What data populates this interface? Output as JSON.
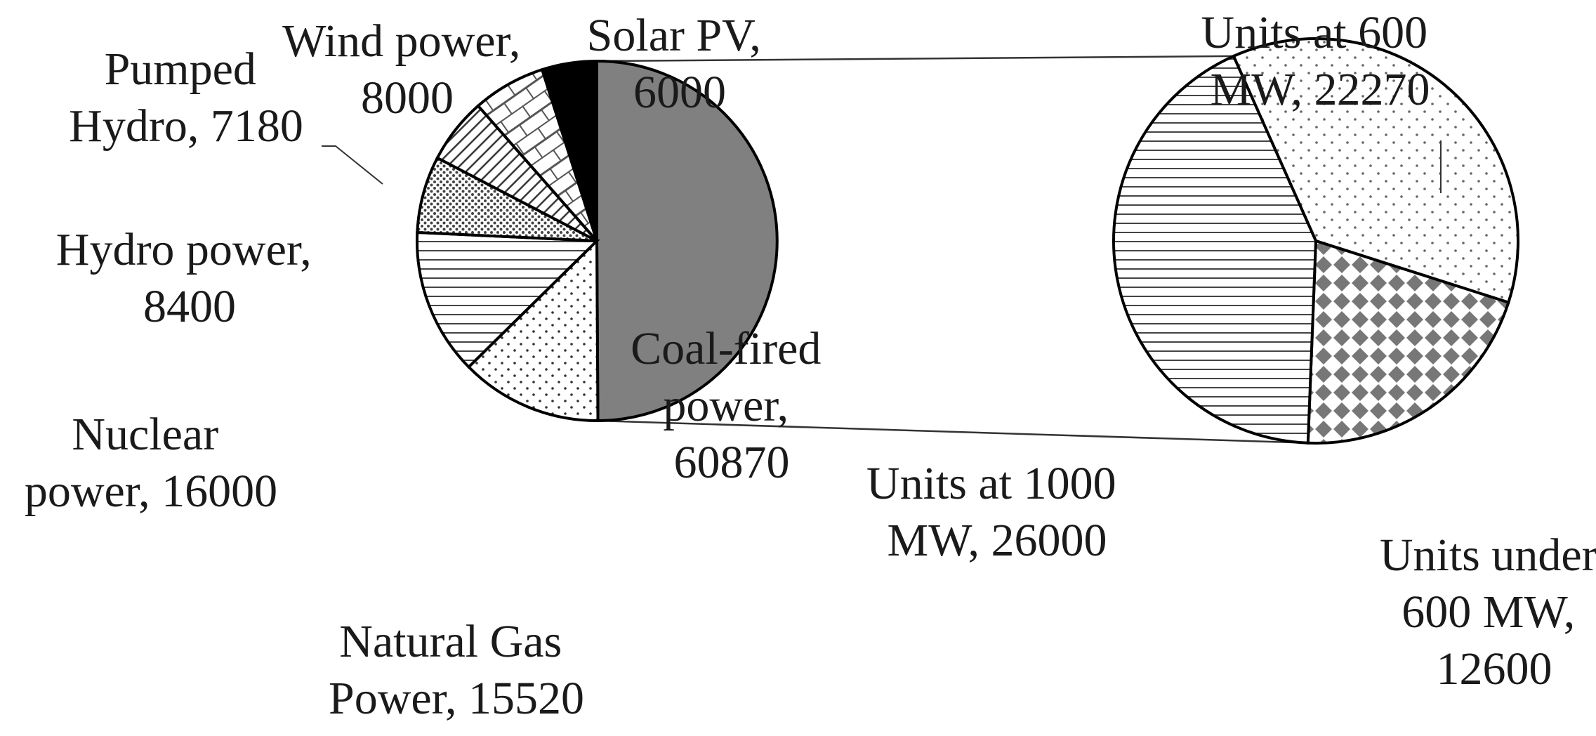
{
  "chart_data": {
    "type": "pie",
    "title": "",
    "main_pie": {
      "slices": [
        {
          "label": "Coal-fired power",
          "value": 60870,
          "pattern": "gray-fill",
          "color": "#808080"
        },
        {
          "label": "Natural Gas Power",
          "value": 15520,
          "pattern": "dots"
        },
        {
          "label": "Nuclear power",
          "value": 16000,
          "pattern": "horizontal-lines"
        },
        {
          "label": "Hydro power",
          "value": 8400,
          "pattern": "dense-dots"
        },
        {
          "label": "Pumped Hydro",
          "value": 7180,
          "pattern": "diagonal-lines"
        },
        {
          "label": "Wind power",
          "value": 8000,
          "pattern": "bricks"
        },
        {
          "label": "Solar PV",
          "value": 6000,
          "pattern": "black-fill",
          "color": "#000000"
        }
      ],
      "exploded_slice": "Coal-fired power"
    },
    "breakdown_pie": {
      "of": "Coal-fired power",
      "slices": [
        {
          "label": "Units at 600 MW",
          "value": 22270,
          "pattern": "sparse-dots"
        },
        {
          "label": "Units under 600 MW",
          "value": 12600,
          "pattern": "diamonds"
        },
        {
          "label": "Units at 1000 MW",
          "value": 26000,
          "pattern": "horizontal-lines"
        }
      ]
    },
    "labels": {
      "solar": [
        "Solar PV,",
        "6000"
      ],
      "wind": [
        "Wind power,",
        "8000"
      ],
      "pumped": [
        "Pumped",
        "Hydro, 7180"
      ],
      "hydro": [
        "Hydro power,",
        "8400"
      ],
      "nuclear": [
        "Nuclear",
        "power, 16000"
      ],
      "gas": [
        "Natural Gas",
        "Power, 15520"
      ],
      "coal": [
        "Coal-fired",
        "power,",
        "60870"
      ],
      "u600": [
        "Units at 600",
        "MW, 22270"
      ],
      "u1000": [
        "Units at 1000",
        "MW, 26000"
      ],
      "uunder": [
        "Units under",
        "600 MW,",
        "12600"
      ]
    }
  }
}
